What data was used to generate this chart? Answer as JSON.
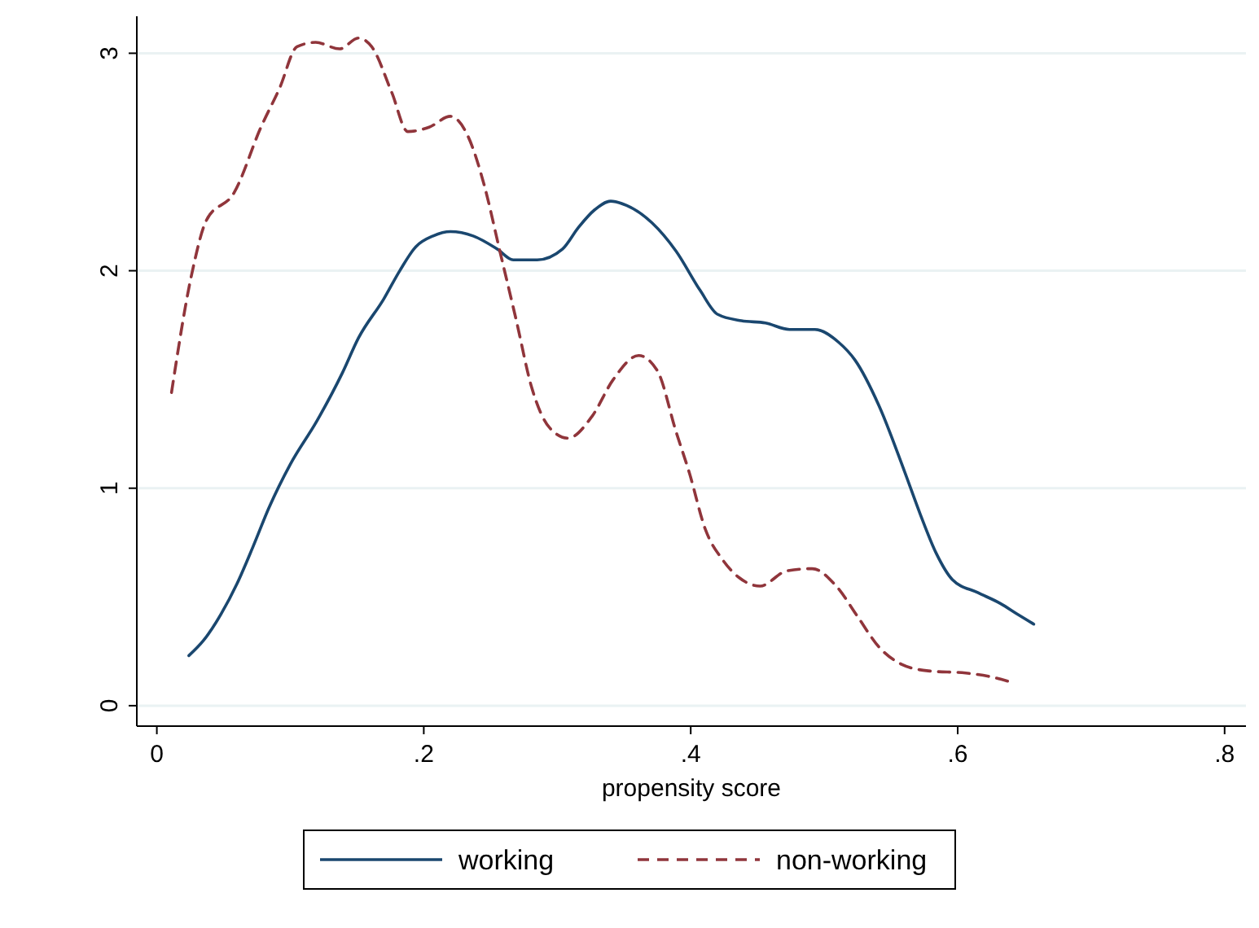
{
  "chart_data": {
    "type": "line",
    "xlabel": "propensity score",
    "xlim": [
      -0.015,
      0.816
    ],
    "ylim": [
      -0.094,
      3.17
    ],
    "xticks": [
      0,
      {
        "value": 0.2,
        "label": ".2"
      },
      {
        "value": 0.4,
        "label": ".4"
      },
      {
        "value": 0.6,
        "label": ".6"
      },
      {
        "value": 0.8,
        "label": ".8"
      }
    ],
    "yticks": [
      0,
      1,
      2,
      3
    ],
    "grid": "y",
    "legend": "bottom",
    "series": [
      {
        "name": "working",
        "color": "#1a476f",
        "line_style": "solid",
        "x": [
          0.024,
          0.035,
          0.048,
          0.06,
          0.072,
          0.084,
          0.1,
          0.12,
          0.139,
          0.151,
          0.17,
          0.182,
          0.194,
          0.207,
          0.22,
          0.237,
          0.255,
          0.267,
          0.285,
          0.304,
          0.316,
          0.328,
          0.34,
          0.352,
          0.371,
          0.389,
          0.407,
          0.42,
          0.438,
          0.456,
          0.474,
          0.493,
          0.511,
          0.523,
          0.541,
          0.56,
          0.572,
          0.584,
          0.596,
          0.615,
          0.632,
          0.645,
          0.657
        ],
        "values": [
          0.23,
          0.3,
          0.42,
          0.56,
          0.73,
          0.91,
          1.11,
          1.31,
          1.53,
          1.69,
          1.87,
          2.0,
          2.11,
          2.16,
          2.18,
          2.16,
          2.1,
          2.05,
          2.05,
          2.1,
          2.2,
          2.28,
          2.32,
          2.3,
          2.22,
          2.09,
          1.91,
          1.8,
          1.77,
          1.76,
          1.73,
          1.73,
          1.67,
          1.59,
          1.38,
          1.08,
          0.88,
          0.7,
          0.58,
          0.52,
          0.47,
          0.42,
          0.375
        ]
      },
      {
        "name": "non-working",
        "color": "#90353b",
        "line_style": "dashed",
        "x": [
          0.011,
          0.026,
          0.037,
          0.058,
          0.078,
          0.092,
          0.105,
          0.119,
          0.137,
          0.151,
          0.161,
          0.176,
          0.188,
          0.204,
          0.22,
          0.233,
          0.245,
          0.257,
          0.269,
          0.281,
          0.294,
          0.308,
          0.326,
          0.342,
          0.361,
          0.375,
          0.389,
          0.399,
          0.411,
          0.424,
          0.436,
          0.452,
          0.472,
          0.491,
          0.509,
          0.525,
          0.541,
          0.558,
          0.578,
          0.606,
          0.623,
          0.639
        ],
        "values": [
          1.44,
          1.98,
          2.23,
          2.36,
          2.66,
          2.84,
          3.03,
          3.05,
          3.02,
          3.07,
          3.03,
          2.82,
          2.64,
          2.66,
          2.71,
          2.62,
          2.4,
          2.09,
          1.78,
          1.46,
          1.28,
          1.23,
          1.33,
          1.5,
          1.61,
          1.54,
          1.26,
          1.07,
          0.81,
          0.67,
          0.59,
          0.55,
          0.62,
          0.63,
          0.55,
          0.41,
          0.27,
          0.19,
          0.16,
          0.15,
          0.135,
          0.11
        ]
      }
    ]
  }
}
